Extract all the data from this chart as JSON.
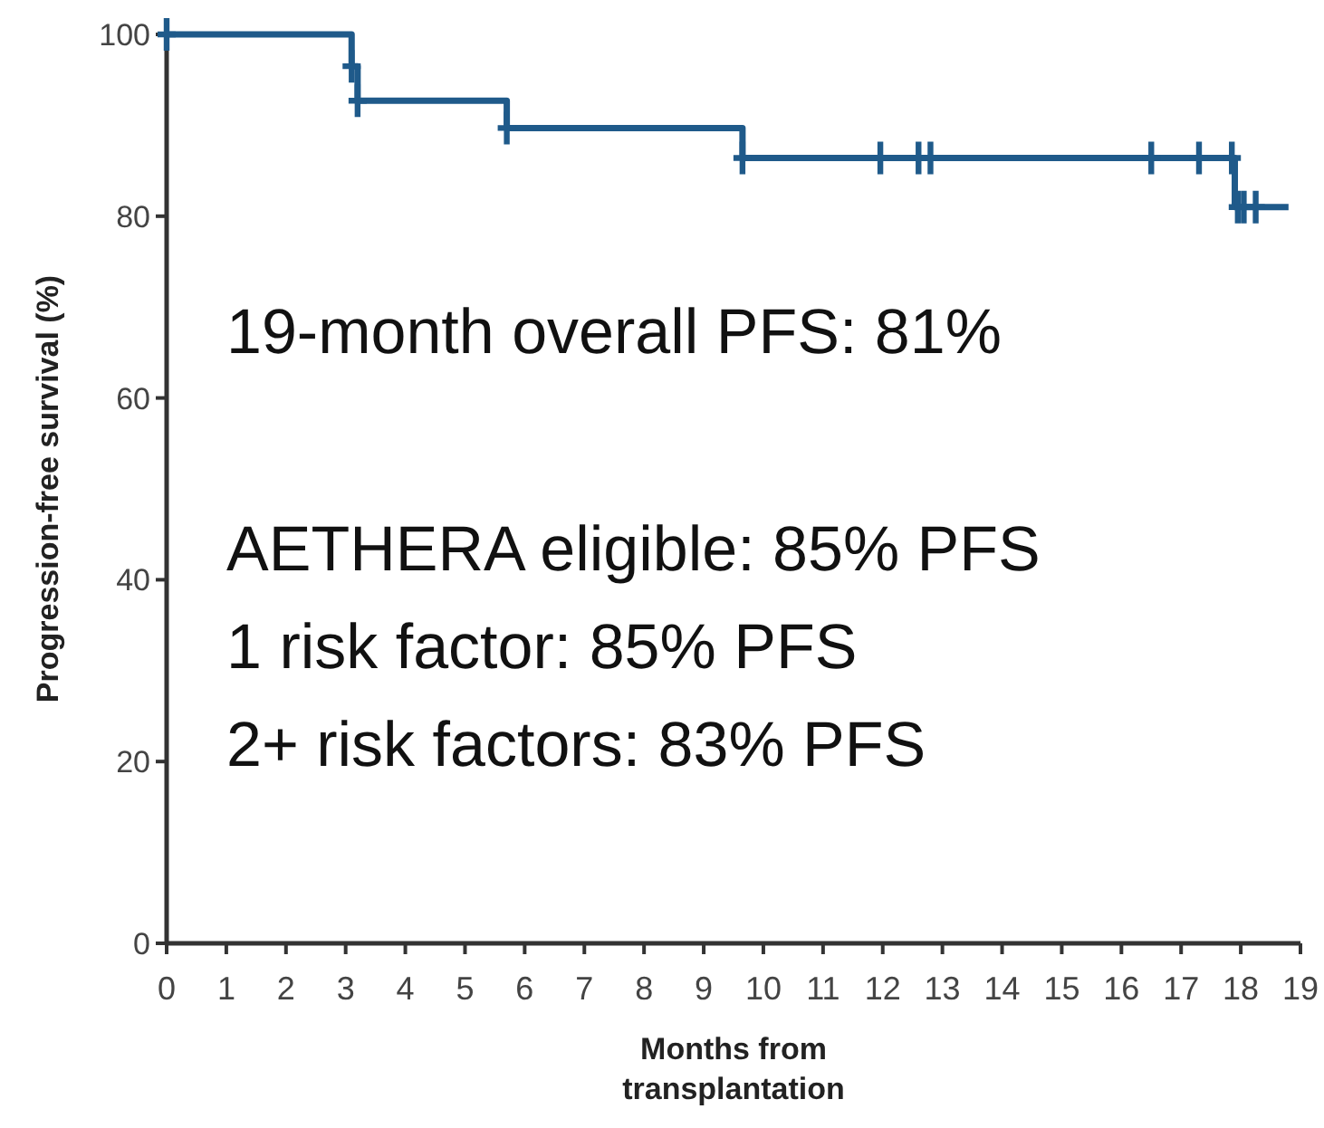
{
  "chart_data": {
    "type": "step",
    "xlabel": "Months from transplantation",
    "ylabel": "Progression-free survival (%)",
    "xlim": [
      0,
      19
    ],
    "xticks": [
      0,
      1,
      2,
      3,
      4,
      5,
      6,
      7,
      8,
      9,
      10,
      11,
      12,
      13,
      14,
      15,
      16,
      17,
      18,
      19
    ],
    "ylim": [
      0,
      100
    ],
    "yticks": [
      0,
      20,
      40,
      60,
      80,
      100
    ],
    "grid": false,
    "series": [
      {
        "color": "#1f5a8a",
        "x": [
          0,
          3.1,
          3.2,
          5.7,
          9.65,
          17.9,
          18.8
        ],
        "values": [
          100,
          96.5,
          92.7,
          89.7,
          86.4,
          81,
          81
        ]
      },
      {
        "type": "scatter",
        "marker": "cross",
        "color": "#1f5a8a",
        "x": [
          0,
          3.1,
          3.2,
          5.7,
          9.65,
          11.96,
          12.6,
          12.8,
          16.5,
          17.3,
          17.85,
          17.95,
          18.05,
          18.25
        ],
        "values": [
          100,
          96.5,
          92.7,
          89.7,
          86.4,
          86.4,
          86.4,
          86.4,
          86.4,
          86.4,
          86.4,
          81,
          81,
          81
        ]
      }
    ],
    "annotations": [
      "19-month overall PFS: 81%",
      "AETHERA eligible: 85% PFS",
      "1 risk factor: 85% PFS",
      "2+ risk factors: 83% PFS"
    ]
  }
}
